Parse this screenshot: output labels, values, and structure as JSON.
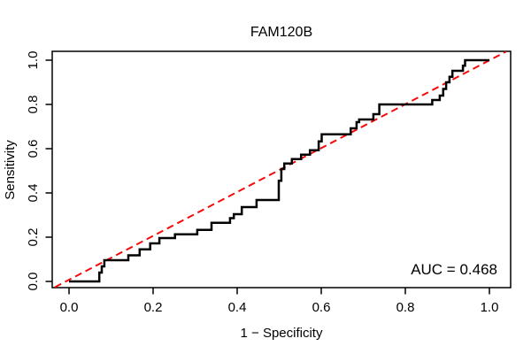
{
  "figure": {
    "title": "FAM120B",
    "x_axis_label": "1 − Specificity",
    "y_axis_label": "Sensitivity",
    "auc_label": "AUC = 0.468"
  },
  "chart_data": {
    "type": "line",
    "subtype": "roc-step-curve",
    "title": "FAM120B",
    "xlabel": "1 − Specificity",
    "ylabel": "Sensitivity",
    "xlim": [
      0,
      1
    ],
    "ylim": [
      0,
      1
    ],
    "grid": false,
    "legend": "none",
    "auc": 0.468,
    "annotations": [
      {
        "text": "AUC = 0.468",
        "position": "bottom-right"
      }
    ],
    "x_ticks": [
      0.0,
      0.2,
      0.4,
      0.6,
      0.8,
      1.0
    ],
    "y_ticks": [
      0.0,
      0.2,
      0.4,
      0.6,
      0.8,
      1.0
    ],
    "x_tick_labels": [
      "0.0",
      "0.2",
      "0.4",
      "0.6",
      "0.8",
      "1.0"
    ],
    "y_tick_labels": [
      "0.0",
      "0.2",
      "0.4",
      "0.6",
      "0.8",
      "1.0"
    ],
    "colors": {
      "roc_curve": "#000000",
      "chance_line": "#F50A0A",
      "box": "#000000"
    },
    "series": [
      {
        "name": "ROC step curve",
        "color": "#000000",
        "style": "solid-step",
        "points": [
          [
            0.0,
            0.0
          ],
          [
            0.072,
            0.0
          ],
          [
            0.072,
            0.04
          ],
          [
            0.078,
            0.04
          ],
          [
            0.078,
            0.068
          ],
          [
            0.084,
            0.068
          ],
          [
            0.084,
            0.096
          ],
          [
            0.141,
            0.096
          ],
          [
            0.141,
            0.118
          ],
          [
            0.168,
            0.118
          ],
          [
            0.168,
            0.145
          ],
          [
            0.193,
            0.145
          ],
          [
            0.193,
            0.172
          ],
          [
            0.215,
            0.172
          ],
          [
            0.215,
            0.196
          ],
          [
            0.252,
            0.196
          ],
          [
            0.252,
            0.213
          ],
          [
            0.305,
            0.213
          ],
          [
            0.305,
            0.233
          ],
          [
            0.339,
            0.233
          ],
          [
            0.339,
            0.265
          ],
          [
            0.383,
            0.265
          ],
          [
            0.383,
            0.286
          ],
          [
            0.392,
            0.286
          ],
          [
            0.392,
            0.304
          ],
          [
            0.411,
            0.304
          ],
          [
            0.411,
            0.336
          ],
          [
            0.446,
            0.336
          ],
          [
            0.446,
            0.368
          ],
          [
            0.499,
            0.368
          ],
          [
            0.499,
            0.455
          ],
          [
            0.505,
            0.455
          ],
          [
            0.505,
            0.508
          ],
          [
            0.512,
            0.508
          ],
          [
            0.512,
            0.533
          ],
          [
            0.53,
            0.533
          ],
          [
            0.53,
            0.553
          ],
          [
            0.552,
            0.553
          ],
          [
            0.552,
            0.573
          ],
          [
            0.573,
            0.573
          ],
          [
            0.573,
            0.593
          ],
          [
            0.594,
            0.593
          ],
          [
            0.594,
            0.633
          ],
          [
            0.601,
            0.633
          ],
          [
            0.601,
            0.665
          ],
          [
            0.67,
            0.665
          ],
          [
            0.67,
            0.692
          ],
          [
            0.684,
            0.692
          ],
          [
            0.684,
            0.72
          ],
          [
            0.69,
            0.72
          ],
          [
            0.69,
            0.732
          ],
          [
            0.724,
            0.732
          ],
          [
            0.724,
            0.756
          ],
          [
            0.738,
            0.756
          ],
          [
            0.738,
            0.8
          ],
          [
            0.864,
            0.8
          ],
          [
            0.864,
            0.82
          ],
          [
            0.882,
            0.82
          ],
          [
            0.882,
            0.84
          ],
          [
            0.89,
            0.84
          ],
          [
            0.89,
            0.87
          ],
          [
            0.897,
            0.87
          ],
          [
            0.897,
            0.9
          ],
          [
            0.905,
            0.9
          ],
          [
            0.905,
            0.925
          ],
          [
            0.912,
            0.925
          ],
          [
            0.912,
            0.952
          ],
          [
            0.937,
            0.952
          ],
          [
            0.937,
            0.975
          ],
          [
            0.942,
            0.975
          ],
          [
            0.942,
            1.0
          ],
          [
            1.0,
            1.0
          ]
        ]
      },
      {
        "name": "Chance diagonal",
        "color": "#F50A0A",
        "style": "dashed",
        "points": [
          [
            0.0,
            0.0
          ],
          [
            1.0,
            1.0
          ]
        ]
      }
    ]
  }
}
